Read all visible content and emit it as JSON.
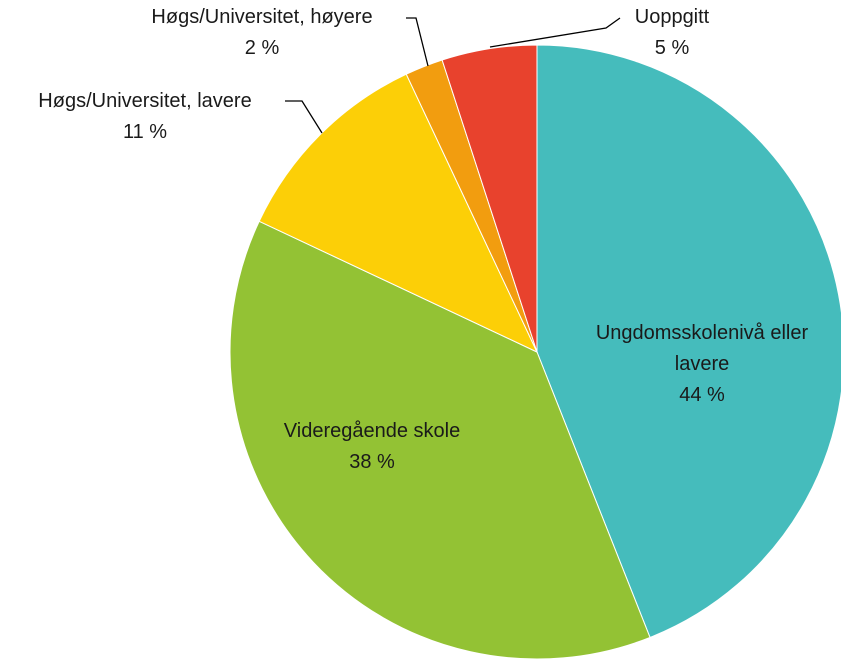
{
  "chart_data": {
    "type": "pie",
    "categories": [
      "Ungdomsskolenivå eller lavere",
      "Videregående skole",
      "Høgs/Universitet, lavere",
      "Høgs/Universitet, høyere",
      "Uoppgitt"
    ],
    "values": [
      44,
      38,
      11,
      2,
      5
    ],
    "value_labels": [
      "44 %",
      "38 %",
      "11 %",
      "2 %",
      "5 %"
    ],
    "colors": [
      "#45bcbc",
      "#93c234",
      "#fccf07",
      "#f29d0f",
      "#e8422d"
    ]
  }
}
